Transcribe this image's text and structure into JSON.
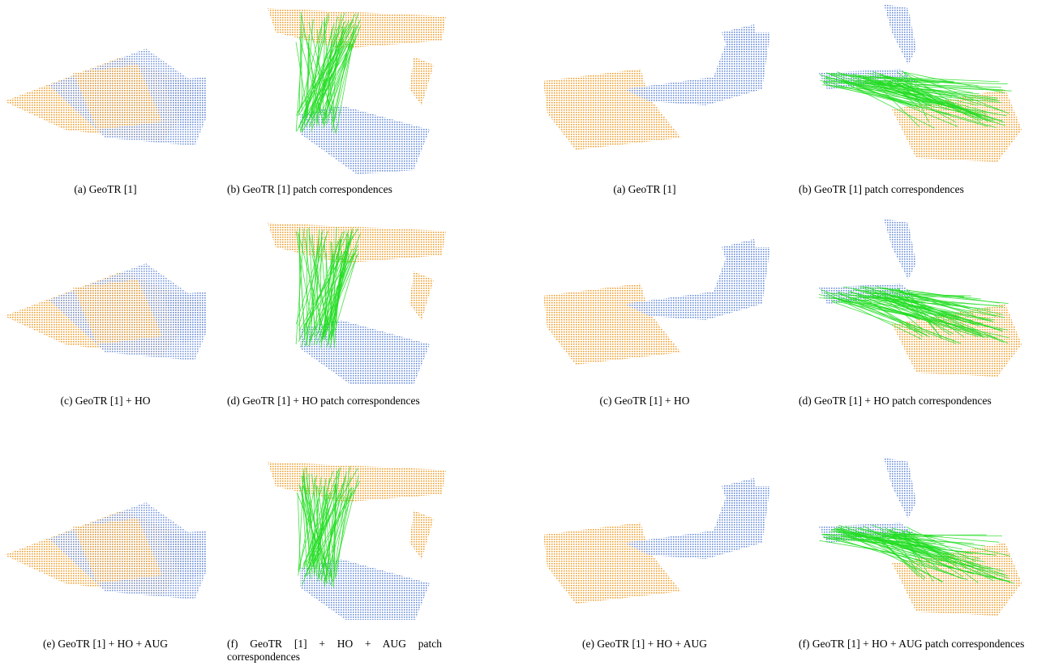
{
  "figure": {
    "left": {
      "captions": [
        "(a) GeoTR [1]",
        "(b) GeoTR [1] patch correspondences",
        "(c) GeoTR [1] + HO",
        "(d) GeoTR [1] + HO patch correspondences",
        "(e) GeoTR [1] + HO + AUG",
        "(f) GeoTR [1] + HO + AUG patch correspondences"
      ]
    },
    "right": {
      "captions": [
        "(a) GeoTR [1]",
        "(b) GeoTR [1] patch correspondences",
        "(c) GeoTR [1] + HO",
        "(d) GeoTR [1] + HO patch correspondences",
        "(e) GeoTR [1] + HO + AUG",
        "(f) GeoTR [1] + HO + AUG patch correspondences"
      ]
    }
  }
}
